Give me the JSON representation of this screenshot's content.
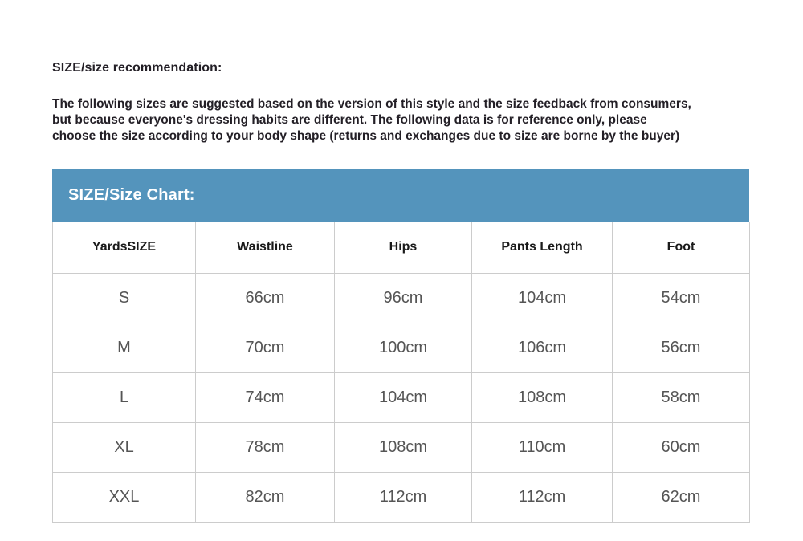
{
  "page": {
    "heading": "SIZE/size recommendation:"
  },
  "intro": {
    "lines": [
      "The following sizes are suggested based on the version of this style and the size feedback from consumers,",
      "but because everyone's dressing habits are different. The following data is for reference only, please",
      "choose the size according to your body shape (returns and exchanges due to size are borne by the buyer)"
    ]
  },
  "size_chart": {
    "title": "SIZE/Size Chart:",
    "columns": [
      "YardsSIZE",
      "Waistline",
      "Hips",
      "Pants Length",
      "Foot"
    ],
    "rows": [
      [
        "S",
        "66cm",
        "96cm",
        "104cm",
        "54cm"
      ],
      [
        "M",
        "70cm",
        "100cm",
        "106cm",
        "56cm"
      ],
      [
        "L",
        "74cm",
        "104cm",
        "108cm",
        "58cm"
      ],
      [
        "XL",
        "78cm",
        "108cm",
        "110cm",
        "60cm"
      ],
      [
        "XXL",
        "82cm",
        "112cm",
        "112cm",
        "62cm"
      ]
    ]
  },
  "colors": {
    "chart_header_background": "#5494bc",
    "chart_header_text": "#ffffff",
    "table_border": "#cccccc",
    "cell_text": "#555555",
    "heading_text": "#231f26"
  }
}
